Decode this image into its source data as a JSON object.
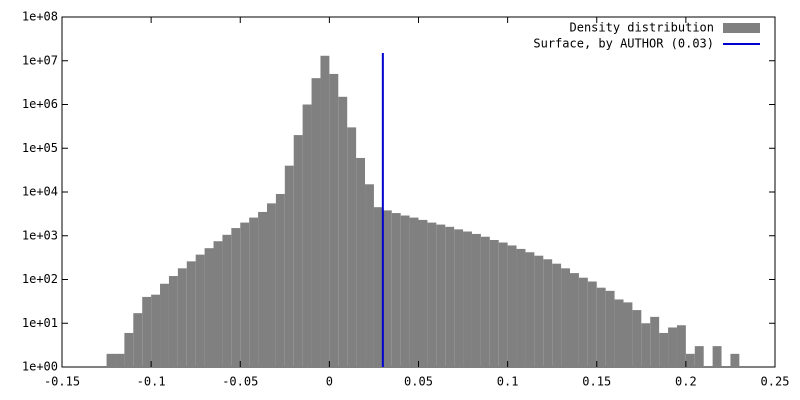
{
  "chart_data": {
    "type": "histogram",
    "log_y": true,
    "legend": "top-right",
    "grid": false,
    "series": [
      {
        "name": "Density distribution",
        "color": "#808080",
        "bins": [
          -0.125,
          -0.12,
          -0.115,
          -0.11,
          -0.105,
          -0.1,
          -0.095,
          -0.09,
          -0.085,
          -0.08,
          -0.075,
          -0.07,
          -0.065,
          -0.06,
          -0.055,
          -0.05,
          -0.045,
          -0.04,
          -0.035,
          -0.03,
          -0.025,
          -0.02,
          -0.015,
          -0.01,
          -0.005,
          0,
          0.005,
          0.01,
          0.015,
          0.02,
          0.025,
          0.03,
          0.035,
          0.04,
          0.045,
          0.05,
          0.055,
          0.06,
          0.065,
          0.07,
          0.075,
          0.08,
          0.085,
          0.09,
          0.095,
          0.1,
          0.105,
          0.11,
          0.115,
          0.12,
          0.125,
          0.13,
          0.135,
          0.14,
          0.145,
          0.15,
          0.155,
          0.16,
          0.165,
          0.17,
          0.175,
          0.18,
          0.185,
          0.19,
          0.195,
          0.2,
          0.205,
          0.21,
          0.215,
          0.22,
          0.225,
          0.23
        ],
        "counts": [
          2,
          2,
          6,
          17,
          40,
          45,
          80,
          120,
          180,
          260,
          370,
          520,
          750,
          1050,
          1500,
          2000,
          2600,
          3500,
          5500,
          9000,
          40000,
          200000,
          1000000,
          4000000,
          13000000,
          5000000,
          1500000,
          300000,
          60000,
          15000,
          4500,
          3800,
          3300,
          2900,
          2600,
          2300,
          2000,
          1800,
          1600,
          1400,
          1250,
          1100,
          950,
          800,
          700,
          600,
          500,
          420,
          350,
          290,
          230,
          180,
          140,
          110,
          90,
          65,
          55,
          35,
          30,
          20,
          10,
          14,
          6,
          8,
          9,
          2,
          3,
          0,
          3,
          0,
          2
        ]
      }
    ],
    "line": {
      "name": "Surface, by AUTHOR (0.03)",
      "color": "#0000cc",
      "x": 0.03,
      "top": 15000000
    },
    "xlim": [
      -0.15,
      0.25
    ],
    "xticks": [
      -0.15,
      -0.1,
      -0.05,
      0,
      0.05,
      0.1,
      0.15,
      0.2,
      0.25
    ],
    "ylim": [
      1,
      100000000
    ],
    "yticks": [
      {
        "value": 1,
        "label": "1e+00"
      },
      {
        "value": 10,
        "label": "1e+01"
      },
      {
        "value": 100,
        "label": "1e+02"
      },
      {
        "value": 1000,
        "label": "1e+03"
      },
      {
        "value": 10000,
        "label": "1e+04"
      },
      {
        "value": 100000,
        "label": "1e+05"
      },
      {
        "value": 1000000,
        "label": "1e+06"
      },
      {
        "value": 10000000,
        "label": "1e+07"
      },
      {
        "value": 100000000,
        "label": "1e+08"
      }
    ]
  }
}
